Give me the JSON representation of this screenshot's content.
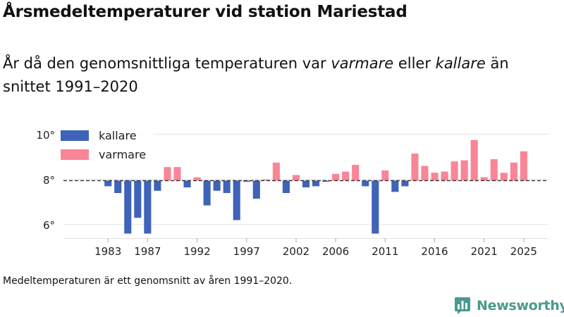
{
  "header": {
    "title": "Årsmedeltemperaturer vid station Mariestad",
    "subtitle_prefix": "År då den genomsnittliga temperaturen var ",
    "subtitle_warmer": "varmare",
    "subtitle_middle": " eller ",
    "subtitle_colder": "kallare",
    "subtitle_suffix": " än snittet 1991–2020"
  },
  "footnote": "Medeltemperaturen är ett genomsnitt av åren 1991–2020.",
  "brand": {
    "name": "Newsworthy",
    "icon": "bar-chart-logo-icon",
    "color": "#4a9a8e"
  },
  "colors": {
    "colder": "#3f63b9",
    "warmer": "#f98596",
    "grid": "#e3e3e3",
    "baseline": "#333333"
  },
  "chart_data": {
    "type": "bar",
    "title": "Årsmedeltemperaturer vid station Mariestad",
    "baseline": 7.95,
    "ylim": [
      5.4,
      10.4
    ],
    "yticks": [
      6,
      8,
      10
    ],
    "ytick_labels": [
      "6°",
      "8°",
      "10°"
    ],
    "xlim": [
      1978.5,
      2027.5
    ],
    "xticks": [
      1983,
      1987,
      1992,
      1997,
      2002,
      2006,
      2011,
      2016,
      2021,
      2025
    ],
    "xtick_labels": [
      "1983",
      "1987",
      "1992",
      "1997",
      "2002",
      "2006",
      "2011",
      "2016",
      "2021",
      "2025"
    ],
    "legend": {
      "placement": "top-left",
      "entries": [
        "kallare",
        "varmare"
      ]
    },
    "years": [
      1983,
      1984,
      1985,
      1986,
      1987,
      1988,
      1989,
      1990,
      1991,
      1992,
      1993,
      1994,
      1995,
      1996,
      1997,
      1998,
      1999,
      2000,
      2001,
      2002,
      2003,
      2004,
      2005,
      2006,
      2007,
      2008,
      2009,
      2010,
      2011,
      2012,
      2013,
      2014,
      2015,
      2016,
      2017,
      2018,
      2019,
      2020,
      2021,
      2022,
      2023,
      2024,
      2025
    ],
    "values": [
      7.7,
      7.4,
      5.6,
      6.3,
      5.6,
      7.5,
      8.55,
      8.55,
      7.65,
      8.1,
      6.85,
      7.5,
      7.4,
      6.2,
      7.9,
      7.15,
      8.0,
      8.75,
      7.4,
      8.2,
      7.65,
      7.7,
      7.9,
      8.25,
      8.35,
      8.65,
      7.7,
      5.6,
      8.4,
      7.45,
      7.7,
      9.15,
      8.6,
      8.3,
      8.35,
      8.8,
      8.85,
      9.75,
      8.1,
      8.9,
      8.3,
      8.75,
      9.25
    ]
  }
}
